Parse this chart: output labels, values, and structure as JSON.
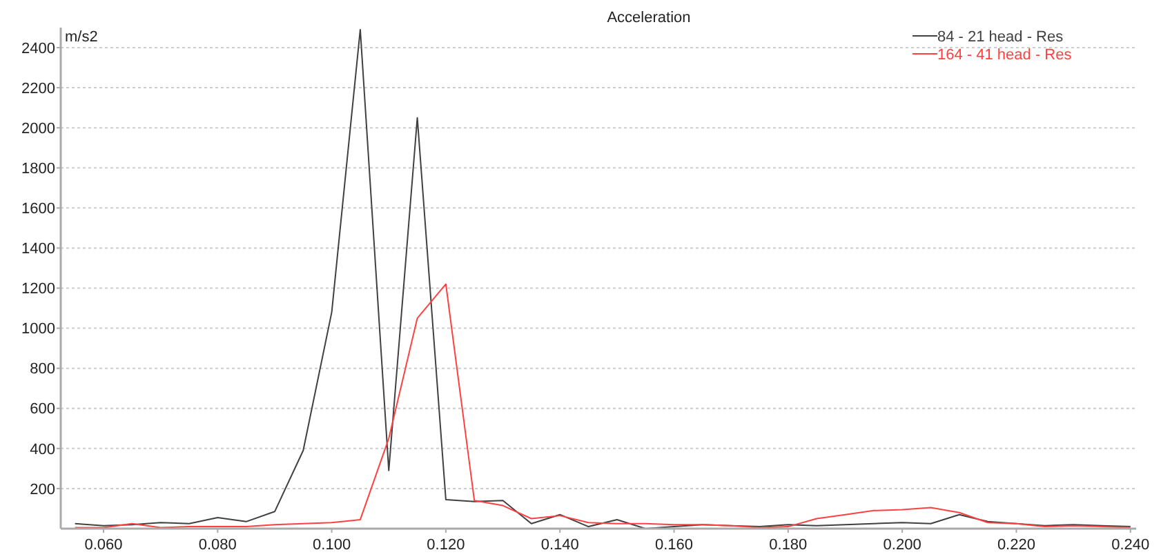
{
  "chart_data": {
    "type": "line",
    "title": "Acceleration",
    "ylabel": "m/s2",
    "x": [
      0.055,
      0.06,
      0.065,
      0.07,
      0.075,
      0.08,
      0.085,
      0.09,
      0.095,
      0.1,
      0.105,
      0.11,
      0.115,
      0.12,
      0.125,
      0.13,
      0.135,
      0.14,
      0.145,
      0.15,
      0.155,
      0.16,
      0.165,
      0.17,
      0.175,
      0.18,
      0.185,
      0.19,
      0.195,
      0.2,
      0.205,
      0.21,
      0.215,
      0.22,
      0.225,
      0.23,
      0.235,
      0.24
    ],
    "series": [
      {
        "name": "84 - 21 head - Res",
        "color": "#404040",
        "values": [
          25,
          15,
          20,
          30,
          25,
          55,
          35,
          85,
          390,
          1080,
          2490,
          290,
          2050,
          145,
          135,
          140,
          25,
          70,
          10,
          45,
          0,
          10,
          20,
          15,
          10,
          20,
          15,
          20,
          25,
          30,
          25,
          70,
          35,
          25,
          15,
          20,
          15,
          10
        ]
      },
      {
        "name": "164 - 41 head - Res",
        "color": "#ff4040",
        "values": [
          5,
          5,
          25,
          5,
          10,
          10,
          10,
          20,
          25,
          30,
          45,
          450,
          1050,
          1220,
          140,
          115,
          50,
          65,
          30,
          25,
          25,
          20,
          20,
          15,
          5,
          10,
          50,
          70,
          90,
          95,
          105,
          80,
          30,
          25,
          10,
          15,
          10,
          5
        ]
      }
    ],
    "xlim": [
      0.0525,
      0.241
    ],
    "xticks": [
      {
        "value": 0.06,
        "label": "0.060"
      },
      {
        "value": 0.08,
        "label": "0.080"
      },
      {
        "value": 0.1,
        "label": "0.100"
      },
      {
        "value": 0.12,
        "label": "0.120"
      },
      {
        "value": 0.14,
        "label": "0.140"
      },
      {
        "value": 0.16,
        "label": "0.160"
      },
      {
        "value": 0.18,
        "label": "0.180"
      },
      {
        "value": 0.2,
        "label": "0.200"
      },
      {
        "value": 0.22,
        "label": "0.220"
      },
      {
        "value": 0.24,
        "label": "0.240"
      }
    ],
    "ylim": [
      0,
      2500
    ],
    "yticks": [
      200,
      400,
      600,
      800,
      1000,
      1200,
      1400,
      1600,
      1800,
      2000,
      2200,
      2400
    ],
    "grid": "y",
    "legend": "top right",
    "marker": "none",
    "line_style": "solid"
  }
}
